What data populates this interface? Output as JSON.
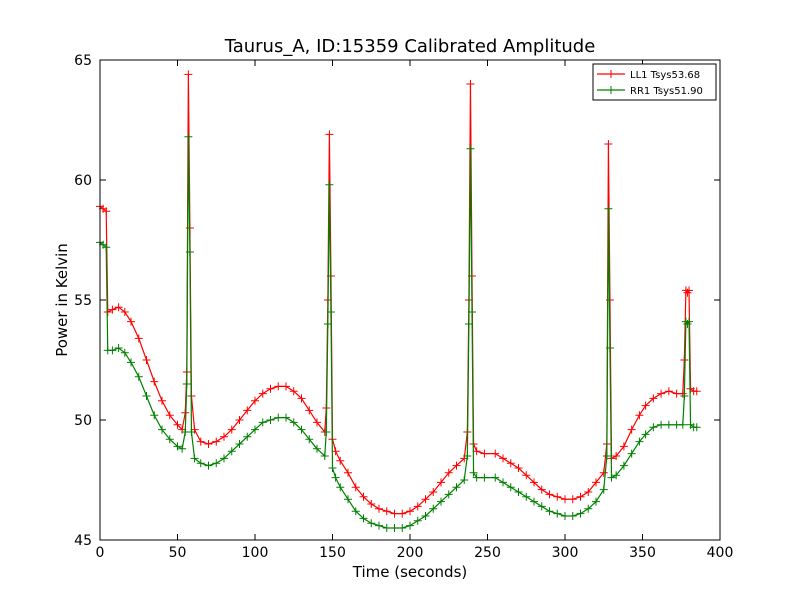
{
  "chart_data": {
    "type": "line",
    "title": "Taurus_A, ID:15359 Calibrated Amplitude",
    "xlabel": "Time (seconds)",
    "ylabel": "Power in Kelvin",
    "xlim": [
      0,
      400
    ],
    "ylim": [
      45,
      65
    ],
    "xticks": [
      0,
      50,
      100,
      150,
      200,
      250,
      300,
      350,
      400
    ],
    "yticks": [
      45,
      50,
      55,
      60,
      65
    ],
    "grid": false,
    "legend_position": "top-right",
    "series": [
      {
        "name": "LL1 Tsys53.68",
        "color": "#ff0000",
        "points": [
          [
            0,
            58.9
          ],
          [
            2,
            58.8
          ],
          [
            4,
            58.7
          ],
          [
            5,
            54.5
          ],
          [
            8,
            54.6
          ],
          [
            12,
            54.7
          ],
          [
            16,
            54.5
          ],
          [
            20,
            54.1
          ],
          [
            25,
            53.4
          ],
          [
            30,
            52.5
          ],
          [
            35,
            51.6
          ],
          [
            40,
            50.8
          ],
          [
            45,
            50.2
          ],
          [
            50,
            49.8
          ],
          [
            53,
            49.6
          ],
          [
            55,
            50.3
          ],
          [
            56,
            52.0
          ],
          [
            57,
            64.4
          ],
          [
            58,
            58.0
          ],
          [
            59,
            51.0
          ],
          [
            61,
            49.6
          ],
          [
            65,
            49.1
          ],
          [
            70,
            49.0
          ],
          [
            75,
            49.1
          ],
          [
            80,
            49.3
          ],
          [
            85,
            49.6
          ],
          [
            90,
            50.0
          ],
          [
            95,
            50.4
          ],
          [
            100,
            50.8
          ],
          [
            105,
            51.1
          ],
          [
            110,
            51.3
          ],
          [
            115,
            51.4
          ],
          [
            120,
            51.4
          ],
          [
            125,
            51.2
          ],
          [
            130,
            50.9
          ],
          [
            135,
            50.4
          ],
          [
            140,
            49.9
          ],
          [
            145,
            49.5
          ],
          [
            146,
            50.5
          ],
          [
            147,
            55.0
          ],
          [
            148,
            61.9
          ],
          [
            149,
            56.0
          ],
          [
            150,
            49.2
          ],
          [
            152,
            48.7
          ],
          [
            155,
            48.3
          ],
          [
            160,
            47.8
          ],
          [
            165,
            47.2
          ],
          [
            170,
            46.8
          ],
          [
            175,
            46.5
          ],
          [
            180,
            46.3
          ],
          [
            185,
            46.2
          ],
          [
            190,
            46.1
          ],
          [
            195,
            46.1
          ],
          [
            200,
            46.2
          ],
          [
            205,
            46.4
          ],
          [
            210,
            46.7
          ],
          [
            215,
            47.0
          ],
          [
            220,
            47.4
          ],
          [
            225,
            47.8
          ],
          [
            230,
            48.1
          ],
          [
            235,
            48.4
          ],
          [
            237,
            49.5
          ],
          [
            238,
            55.0
          ],
          [
            239,
            64.0
          ],
          [
            240,
            56.0
          ],
          [
            241,
            49.0
          ],
          [
            243,
            48.7
          ],
          [
            248,
            48.6
          ],
          [
            255,
            48.6
          ],
          [
            260,
            48.4
          ],
          [
            265,
            48.2
          ],
          [
            270,
            48.0
          ],
          [
            275,
            47.7
          ],
          [
            280,
            47.4
          ],
          [
            285,
            47.1
          ],
          [
            290,
            46.9
          ],
          [
            295,
            46.8
          ],
          [
            300,
            46.7
          ],
          [
            305,
            46.7
          ],
          [
            310,
            46.8
          ],
          [
            315,
            47.0
          ],
          [
            320,
            47.4
          ],
          [
            325,
            47.8
          ],
          [
            327,
            49.0
          ],
          [
            328,
            61.5
          ],
          [
            329,
            55.0
          ],
          [
            330,
            48.4
          ],
          [
            333,
            48.5
          ],
          [
            338,
            48.9
          ],
          [
            343,
            49.6
          ],
          [
            348,
            50.2
          ],
          [
            352,
            50.6
          ],
          [
            357,
            50.9
          ],
          [
            362,
            51.1
          ],
          [
            367,
            51.2
          ],
          [
            372,
            51.1
          ],
          [
            376,
            51.1
          ],
          [
            377,
            52.5
          ],
          [
            378,
            55.4
          ],
          [
            379,
            55.3
          ],
          [
            380,
            55.4
          ],
          [
            381,
            51.3
          ],
          [
            383,
            51.2
          ],
          [
            385,
            51.2
          ]
        ]
      },
      {
        "name": "RR1 Tsys51.90",
        "color": "#008000",
        "points": [
          [
            0,
            57.4
          ],
          [
            2,
            57.3
          ],
          [
            4,
            57.2
          ],
          [
            5,
            52.9
          ],
          [
            8,
            52.9
          ],
          [
            12,
            53.0
          ],
          [
            16,
            52.8
          ],
          [
            20,
            52.4
          ],
          [
            25,
            51.8
          ],
          [
            30,
            51.0
          ],
          [
            35,
            50.2
          ],
          [
            40,
            49.6
          ],
          [
            45,
            49.2
          ],
          [
            50,
            48.9
          ],
          [
            53,
            48.8
          ],
          [
            55,
            49.5
          ],
          [
            56,
            51.5
          ],
          [
            57,
            61.8
          ],
          [
            58,
            57.0
          ],
          [
            59,
            49.5
          ],
          [
            61,
            48.4
          ],
          [
            65,
            48.2
          ],
          [
            70,
            48.1
          ],
          [
            75,
            48.2
          ],
          [
            80,
            48.4
          ],
          [
            85,
            48.7
          ],
          [
            90,
            49.0
          ],
          [
            95,
            49.3
          ],
          [
            100,
            49.6
          ],
          [
            105,
            49.9
          ],
          [
            110,
            50.0
          ],
          [
            115,
            50.1
          ],
          [
            120,
            50.1
          ],
          [
            125,
            49.9
          ],
          [
            130,
            49.6
          ],
          [
            135,
            49.2
          ],
          [
            140,
            48.8
          ],
          [
            145,
            48.5
          ],
          [
            146,
            49.5
          ],
          [
            147,
            54.0
          ],
          [
            148,
            59.8
          ],
          [
            149,
            54.5
          ],
          [
            150,
            48.0
          ],
          [
            152,
            47.6
          ],
          [
            155,
            47.2
          ],
          [
            160,
            46.7
          ],
          [
            165,
            46.2
          ],
          [
            170,
            45.9
          ],
          [
            175,
            45.7
          ],
          [
            180,
            45.6
          ],
          [
            185,
            45.5
          ],
          [
            190,
            45.5
          ],
          [
            195,
            45.5
          ],
          [
            200,
            45.6
          ],
          [
            205,
            45.8
          ],
          [
            210,
            46.0
          ],
          [
            215,
            46.3
          ],
          [
            220,
            46.6
          ],
          [
            225,
            46.9
          ],
          [
            230,
            47.2
          ],
          [
            235,
            47.5
          ],
          [
            237,
            48.5
          ],
          [
            238,
            54.0
          ],
          [
            239,
            61.3
          ],
          [
            240,
            54.5
          ],
          [
            241,
            47.8
          ],
          [
            243,
            47.6
          ],
          [
            248,
            47.6
          ],
          [
            255,
            47.6
          ],
          [
            260,
            47.4
          ],
          [
            265,
            47.2
          ],
          [
            270,
            47.0
          ],
          [
            275,
            46.8
          ],
          [
            280,
            46.6
          ],
          [
            285,
            46.4
          ],
          [
            290,
            46.2
          ],
          [
            295,
            46.1
          ],
          [
            300,
            46.0
          ],
          [
            305,
            46.0
          ],
          [
            310,
            46.1
          ],
          [
            315,
            46.3
          ],
          [
            320,
            46.6
          ],
          [
            325,
            47.1
          ],
          [
            327,
            48.5
          ],
          [
            328,
            58.8
          ],
          [
            329,
            53.0
          ],
          [
            330,
            47.6
          ],
          [
            333,
            47.7
          ],
          [
            338,
            48.1
          ],
          [
            343,
            48.6
          ],
          [
            348,
            49.1
          ],
          [
            352,
            49.4
          ],
          [
            357,
            49.7
          ],
          [
            362,
            49.8
          ],
          [
            367,
            49.8
          ],
          [
            372,
            49.8
          ],
          [
            376,
            49.8
          ],
          [
            377,
            51.0
          ],
          [
            378,
            54.1
          ],
          [
            379,
            54.0
          ],
          [
            380,
            54.1
          ],
          [
            381,
            49.8
          ],
          [
            383,
            49.7
          ],
          [
            385,
            49.7
          ]
        ]
      }
    ]
  }
}
